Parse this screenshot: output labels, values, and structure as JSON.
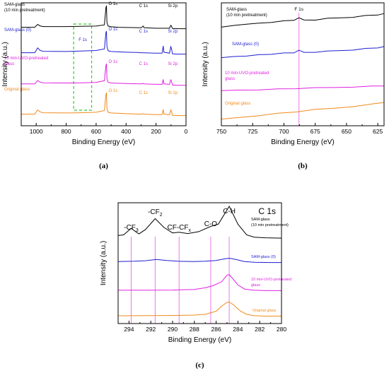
{
  "colors": {
    "black": "#000000",
    "blue": "#1f1fd0",
    "magenta": "#e020e0",
    "orange": "#f08a1e",
    "vline": "#e87ae8",
    "green": "#33cc33"
  },
  "chart_data": [
    {
      "type": "line",
      "title": "",
      "subtitle": "",
      "xlabel": "Binding Energy (eV)",
      "ylabel": "Intensity (a.u.)",
      "xlim": [
        1100,
        0
      ],
      "xticks": [
        1000,
        800,
        600,
        400,
        200,
        0
      ],
      "panel_label": "(a)",
      "highlight": {
        "x1": 750,
        "x2": 630,
        "color": "green",
        "style": "dashed"
      },
      "series": [
        {
          "name": "SAM-glass (10 min pretreatment)",
          "label_lines": [
            "SAM-glass",
            "(10 min pretreatment)"
          ],
          "color": "black",
          "x": [
            1100,
            1010,
            990,
            975,
            955,
            800,
            700,
            600,
            545,
            535,
            531,
            528,
            520,
            500,
            450,
            400,
            300,
            285,
            280,
            200,
            110,
            102,
            98,
            90,
            50,
            0
          ],
          "y": [
            0.1,
            0.1,
            0.22,
            0.16,
            0.13,
            0.13,
            0.14,
            0.15,
            0.2,
            0.9,
            1.0,
            0.3,
            0.15,
            0.12,
            0.1,
            0.09,
            0.08,
            0.15,
            0.08,
            0.06,
            0.06,
            0.18,
            0.16,
            0.05,
            0.04,
            0.04
          ],
          "peaks": [
            {
              "label": "O 1s",
              "x": 531
            },
            {
              "label": "C 1s",
              "x": 285
            },
            {
              "label": "Si 2p",
              "x": 102
            }
          ]
        },
        {
          "name": "SAM-glass (0)",
          "label_lines": [
            "SAM-glass (0)"
          ],
          "color": "blue",
          "x": [
            1100,
            1010,
            990,
            975,
            955,
            800,
            700,
            600,
            545,
            535,
            531,
            528,
            520,
            500,
            400,
            330,
            300,
            200,
            160,
            152,
            148,
            110,
            102,
            98,
            90,
            50,
            0
          ],
          "y": [
            0.1,
            0.1,
            0.3,
            0.2,
            0.16,
            0.15,
            0.17,
            0.19,
            0.26,
            0.92,
            1.0,
            0.35,
            0.18,
            0.15,
            0.12,
            0.11,
            0.1,
            0.08,
            0.08,
            0.38,
            0.12,
            0.08,
            0.35,
            0.3,
            0.05,
            0.04,
            0.04
          ],
          "peaks": [
            {
              "label": "F 1s",
              "x": 688
            },
            {
              "label": "O 1s",
              "x": 531
            },
            {
              "label": "C 1s",
              "x": 285
            },
            {
              "label": "Si 2p",
              "x": 102
            }
          ]
        },
        {
          "name": "10 min-UVO-pretreated glass",
          "label_lines": [
            "10 min-UVO-pretreated",
            "glass"
          ],
          "color": "magenta",
          "x": [
            1100,
            1010,
            990,
            975,
            955,
            800,
            700,
            600,
            545,
            535,
            531,
            528,
            520,
            500,
            400,
            300,
            285,
            280,
            200,
            160,
            152,
            148,
            110,
            102,
            98,
            90,
            50,
            0
          ],
          "y": [
            0.1,
            0.1,
            0.25,
            0.18,
            0.15,
            0.14,
            0.15,
            0.17,
            0.24,
            0.9,
            1.0,
            0.33,
            0.17,
            0.14,
            0.12,
            0.1,
            0.12,
            0.1,
            0.08,
            0.08,
            0.3,
            0.1,
            0.08,
            0.28,
            0.24,
            0.05,
            0.04,
            0.04
          ],
          "peaks": [
            {
              "label": "O 1s",
              "x": 531
            },
            {
              "label": "C 1s",
              "x": 285
            },
            {
              "label": "Si 2p",
              "x": 102
            }
          ]
        },
        {
          "name": "Original glass",
          "label_lines": [
            "Original glass"
          ],
          "color": "orange",
          "x": [
            1100,
            1010,
            990,
            975,
            955,
            800,
            700,
            600,
            545,
            535,
            531,
            528,
            520,
            500,
            400,
            300,
            285,
            280,
            200,
            160,
            152,
            148,
            110,
            102,
            98,
            90,
            50,
            0
          ],
          "y": [
            0.1,
            0.1,
            0.28,
            0.2,
            0.16,
            0.15,
            0.16,
            0.18,
            0.25,
            0.9,
            1.0,
            0.34,
            0.18,
            0.15,
            0.12,
            0.1,
            0.12,
            0.1,
            0.08,
            0.08,
            0.3,
            0.1,
            0.08,
            0.28,
            0.24,
            0.05,
            0.04,
            0.04
          ],
          "peaks": [
            {
              "label": "O 1s",
              "x": 531
            },
            {
              "label": "C 1s",
              "x": 285
            },
            {
              "label": "Si 2p",
              "x": 102
            }
          ]
        }
      ]
    },
    {
      "type": "line",
      "title": "",
      "subtitle": "",
      "xlabel": "Binding Energy (eV)",
      "ylabel": "Intensity (a.u.)",
      "xlim": [
        750,
        620
      ],
      "xticks": [
        750,
        725,
        700,
        675,
        650,
        625
      ],
      "panel_label": "(b)",
      "vlines": [
        {
          "x": 688,
          "label": "F 1s",
          "color": "vline"
        }
      ],
      "series": [
        {
          "name": "SAM-glass (10 min pretreatment)",
          "label_lines": [
            "SAM-glass",
            "(10 min pretreatment)"
          ],
          "color": "black",
          "x": [
            750,
            740,
            730,
            720,
            710,
            700,
            692,
            688,
            684,
            675,
            665,
            655,
            645,
            635,
            625,
            620
          ],
          "y": [
            0.22,
            0.3,
            0.38,
            0.4,
            0.45,
            0.5,
            0.54,
            0.68,
            0.55,
            0.56,
            0.62,
            0.66,
            0.7,
            0.76,
            0.8,
            0.84
          ]
        },
        {
          "name": "SAM-glass (0)",
          "label_lines": [
            "SAM-glass (0)"
          ],
          "color": "blue",
          "x": [
            750,
            740,
            730,
            720,
            710,
            700,
            692,
            688,
            684,
            675,
            665,
            655,
            645,
            635,
            625,
            620
          ],
          "y": [
            0.12,
            0.18,
            0.22,
            0.26,
            0.3,
            0.34,
            0.36,
            0.52,
            0.38,
            0.4,
            0.44,
            0.48,
            0.52,
            0.58,
            0.62,
            0.66
          ]
        },
        {
          "name": "10 min-UVO-pretreated glass",
          "label_lines": [
            "10 min-UVO-pretreated",
            "glass"
          ],
          "color": "magenta",
          "x": [
            750,
            735,
            720,
            705,
            690,
            675,
            660,
            645,
            630,
            620
          ],
          "y": [
            0.1,
            0.14,
            0.18,
            0.22,
            0.26,
            0.3,
            0.34,
            0.4,
            0.44,
            0.48
          ]
        },
        {
          "name": "Original glass",
          "label_lines": [
            "Original glass"
          ],
          "color": "orange",
          "x": [
            750,
            735,
            720,
            705,
            690,
            675,
            660,
            645,
            630,
            620
          ],
          "y": [
            0.05,
            0.14,
            0.24,
            0.34,
            0.42,
            0.52,
            0.6,
            0.7,
            0.8,
            0.9
          ]
        }
      ]
    },
    {
      "type": "line",
      "title": "C 1s",
      "subtitle": "",
      "xlabel": "Binding Energy (eV)",
      "ylabel": "Intensity (a.u.)",
      "xlim": [
        295,
        280
      ],
      "xticks": [
        294,
        292,
        290,
        288,
        286,
        284,
        282,
        280
      ],
      "panel_label": "(c)",
      "vlines": [
        {
          "x": 293.8,
          "label": "-CF",
          "sub": "3",
          "color": "vline"
        },
        {
          "x": 291.6,
          "label": "-CF",
          "sub": "2",
          "color": "vline"
        },
        {
          "x": 289.4,
          "label": "CF-CF",
          "sub": "x",
          "color": "vline"
        },
        {
          "x": 286.5,
          "label": "C-O",
          "color": "vline"
        },
        {
          "x": 284.8,
          "label": "C-H",
          "color": "vline"
        }
      ],
      "series": [
        {
          "name": "SAM-glass (10 min pretreatment)",
          "label_lines": [
            "SAM-glass",
            "(10 min pretreatment)"
          ],
          "color": "black",
          "x": [
            295,
            294.5,
            293.8,
            293.1,
            292.5,
            291.6,
            290.8,
            290,
            289.4,
            288.6,
            287.6,
            286.5,
            285.8,
            284.8,
            284.0,
            283.2,
            282.5,
            281.5,
            280
          ],
          "y": [
            0.1,
            0.12,
            0.32,
            0.15,
            0.28,
            0.62,
            0.35,
            0.18,
            0.2,
            0.16,
            0.22,
            0.38,
            0.45,
            1.0,
            0.45,
            0.12,
            0.05,
            0.03,
            0.02
          ]
        },
        {
          "name": "SAM-glass (0)",
          "label_lines": [
            "SAM-glass (0)"
          ],
          "color": "blue",
          "x": [
            295,
            293.5,
            292.5,
            291.5,
            290.5,
            289.5,
            288,
            287,
            286,
            285.3,
            284.8,
            284.2,
            283.4,
            282.5,
            281,
            280
          ],
          "y": [
            0.1,
            0.12,
            0.16,
            0.26,
            0.18,
            0.12,
            0.1,
            0.12,
            0.18,
            0.3,
            0.36,
            0.26,
            0.1,
            0.04,
            0.02,
            0.02
          ]
        },
        {
          "name": "10 min-UVO-pretreated glass",
          "label_lines": [
            "10 min-UVO-pretreated",
            "glass"
          ],
          "color": "magenta",
          "x": [
            295,
            292,
            290,
            288,
            287,
            286.3,
            285.5,
            285.0,
            284.8,
            284.5,
            284.0,
            283.4,
            282.6,
            281.5,
            280
          ],
          "y": [
            0.04,
            0.04,
            0.05,
            0.08,
            0.16,
            0.26,
            0.45,
            0.78,
            0.8,
            0.62,
            0.3,
            0.1,
            0.04,
            0.02,
            0.02
          ]
        },
        {
          "name": "Original glass",
          "label_lines": [
            "Original glass"
          ],
          "color": "orange",
          "x": [
            295,
            292,
            290,
            288,
            287,
            286,
            285.5,
            285.0,
            284.8,
            284.4,
            283.8,
            283.2,
            282.6,
            281.5,
            280
          ],
          "y": [
            0.04,
            0.05,
            0.06,
            0.08,
            0.12,
            0.3,
            0.58,
            0.8,
            0.82,
            0.66,
            0.32,
            0.12,
            0.05,
            0.02,
            0.02
          ]
        }
      ]
    }
  ]
}
